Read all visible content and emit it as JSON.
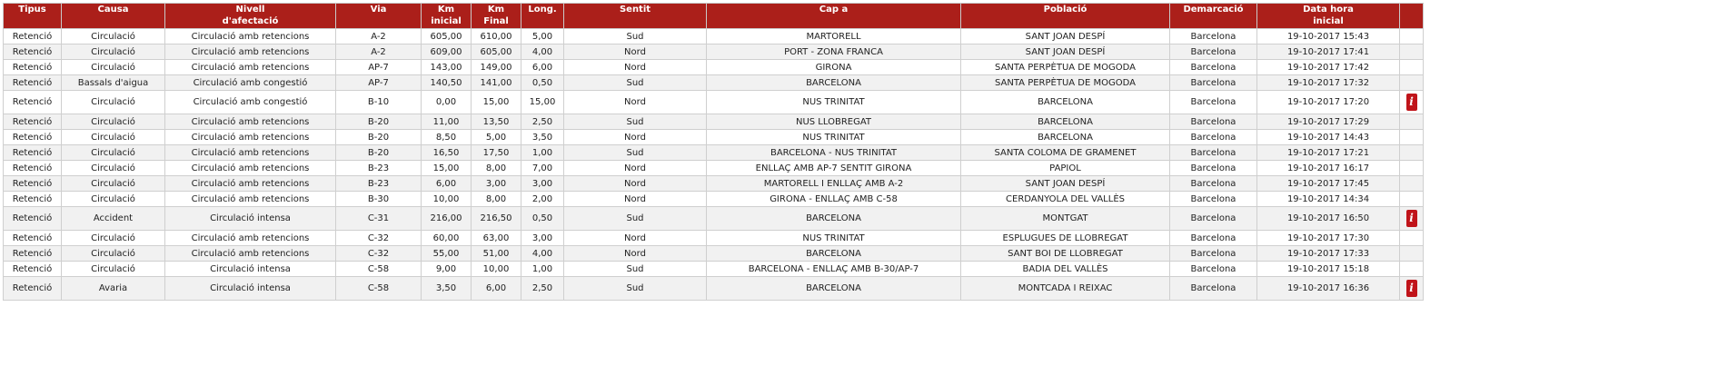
{
  "table": {
    "header": [
      "Tipus",
      "Causa",
      "Nivell\nd'afectació",
      "Via",
      "Km\ninicial",
      "Km\nFinal",
      "Long.",
      "Sentit",
      "Cap a",
      "Població",
      "Demarcació",
      "Data hora\ninicial"
    ],
    "rows": [
      [
        "Retenció",
        "Circulació",
        "Circulació amb retencions",
        "A-2",
        "605,00",
        "610,00",
        "5,00",
        "Sud",
        "MARTORELL",
        "SANT JOAN DESPÍ",
        "Barcelona",
        "19-10-2017 15:43",
        null
      ],
      [
        "Retenció",
        "Circulació",
        "Circulació amb retencions",
        "A-2",
        "609,00",
        "605,00",
        "4,00",
        "Nord",
        "PORT - ZONA FRANCA",
        "SANT JOAN DESPÍ",
        "Barcelona",
        "19-10-2017 17:41",
        null
      ],
      [
        "Retenció",
        "Circulació",
        "Circulació amb retencions",
        "AP-7",
        "143,00",
        "149,00",
        "6,00",
        "Nord",
        "GIRONA",
        "SANTA PERPÈTUA DE MOGODA",
        "Barcelona",
        "19-10-2017 17:42",
        null
      ],
      [
        "Retenció",
        "Bassals d'aigua",
        "Circulació amb congestió",
        "AP-7",
        "140,50",
        "141,00",
        "0,50",
        "Sud",
        "BARCELONA",
        "SANTA PERPÈTUA DE MOGODA",
        "Barcelona",
        "19-10-2017 17:32",
        null
      ],
      [
        "Retenció",
        "Circulació",
        "Circulació amb congestió",
        "B-10",
        "0,00",
        "15,00",
        "15,00",
        "Nord",
        "NUS TRINITAT",
        "BARCELONA",
        "Barcelona",
        "19-10-2017 17:20",
        "i"
      ],
      [
        "Retenció",
        "Circulació",
        "Circulació amb retencions",
        "B-20",
        "11,00",
        "13,50",
        "2,50",
        "Sud",
        "NUS LLOBREGAT",
        "BARCELONA",
        "Barcelona",
        "19-10-2017 17:29",
        null
      ],
      [
        "Retenció",
        "Circulació",
        "Circulació amb retencions",
        "B-20",
        "8,50",
        "5,00",
        "3,50",
        "Nord",
        "NUS TRINITAT",
        "BARCELONA",
        "Barcelona",
        "19-10-2017 14:43",
        null
      ],
      [
        "Retenció",
        "Circulació",
        "Circulació amb retencions",
        "B-20",
        "16,50",
        "17,50",
        "1,00",
        "Sud",
        "BARCELONA - NUS TRINITAT",
        "SANTA COLOMA DE GRAMENET",
        "Barcelona",
        "19-10-2017 17:21",
        null
      ],
      [
        "Retenció",
        "Circulació",
        "Circulació amb retencions",
        "B-23",
        "15,00",
        "8,00",
        "7,00",
        "Nord",
        "ENLLAÇ AMB AP-7 SENTIT GIRONA",
        "PAPIOL",
        "Barcelona",
        "19-10-2017 16:17",
        null
      ],
      [
        "Retenció",
        "Circulació",
        "Circulació amb retencions",
        "B-23",
        "6,00",
        "3,00",
        "3,00",
        "Nord",
        "MARTORELL I ENLLAÇ AMB A-2",
        "SANT JOAN DESPÍ",
        "Barcelona",
        "19-10-2017 17:45",
        null
      ],
      [
        "Retenció",
        "Circulació",
        "Circulació amb retencions",
        "B-30",
        "10,00",
        "8,00",
        "2,00",
        "Nord",
        "GIRONA - ENLLAÇ AMB C-58",
        "CERDANYOLA DEL VALLÈS",
        "Barcelona",
        "19-10-2017 14:34",
        null
      ],
      [
        "Retenció",
        "Accident",
        "Circulació intensa",
        "C-31",
        "216,00",
        "216,50",
        "0,50",
        "Sud",
        "BARCELONA",
        "MONTGAT",
        "Barcelona",
        "19-10-2017 16:50",
        "i"
      ],
      [
        "Retenció",
        "Circulació",
        "Circulació amb retencions",
        "C-32",
        "60,00",
        "63,00",
        "3,00",
        "Nord",
        "NUS TRINITAT",
        "ESPLUGUES DE LLOBREGAT",
        "Barcelona",
        "19-10-2017 17:30",
        null
      ],
      [
        "Retenció",
        "Circulació",
        "Circulació amb retencions",
        "C-32",
        "55,00",
        "51,00",
        "4,00",
        "Nord",
        "BARCELONA",
        "SANT BOI DE LLOBREGAT",
        "Barcelona",
        "19-10-2017 17:33",
        null
      ],
      [
        "Retenció",
        "Circulació",
        "Circulació intensa",
        "C-58",
        "9,00",
        "10,00",
        "1,00",
        "Sud",
        "BARCELONA - ENLLAÇ AMB B-30/AP-7",
        "BADIA DEL VALLÈS",
        "Barcelona",
        "19-10-2017 15:18",
        null
      ],
      [
        "Retenció",
        "Avaria",
        "Circulació intensa",
        "C-58",
        "3,50",
        "6,00",
        "2,50",
        "Sud",
        "BARCELONA",
        "MONTCADA I REIXAC",
        "Barcelona",
        "19-10-2017 16:36",
        "i"
      ]
    ]
  }
}
